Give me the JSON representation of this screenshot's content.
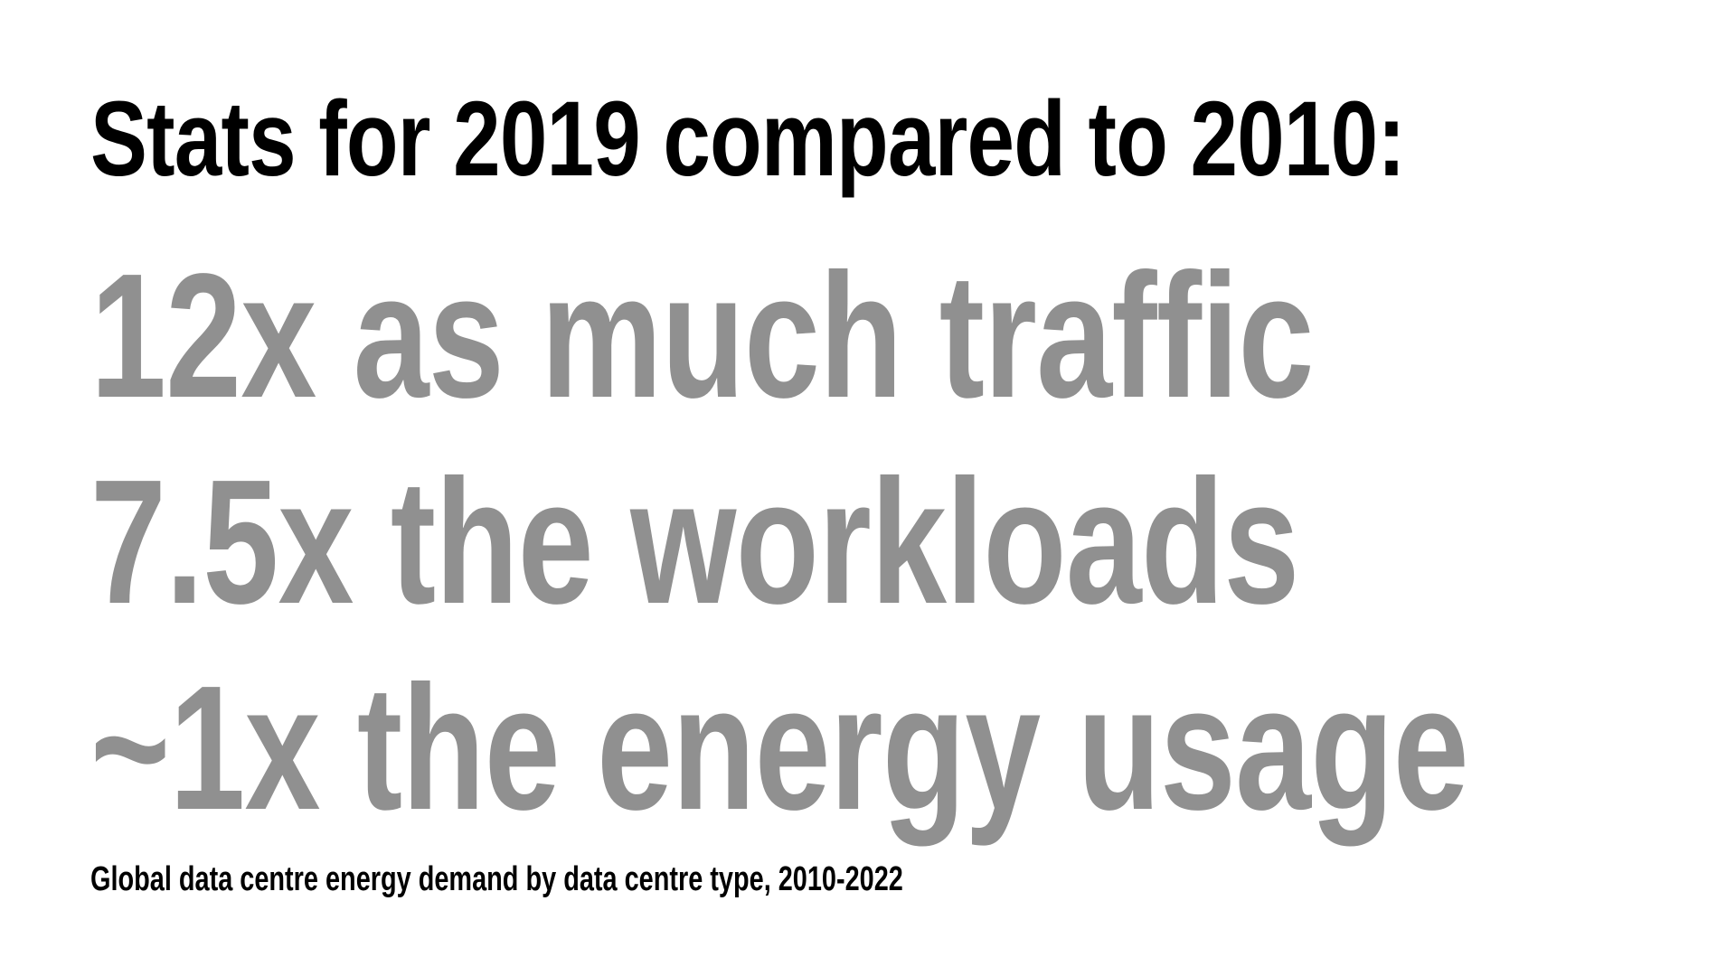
{
  "heading": "Stats for 2019 compared to 2010:",
  "stats": [
    "12x as much traffic",
    "7.5x the workloads",
    "~1x the energy usage"
  ],
  "caption": "Global data centre energy demand by data centre type, 2010-2022",
  "colors": {
    "heading": "#000000",
    "stats": "#909090",
    "background": "#ffffff"
  }
}
